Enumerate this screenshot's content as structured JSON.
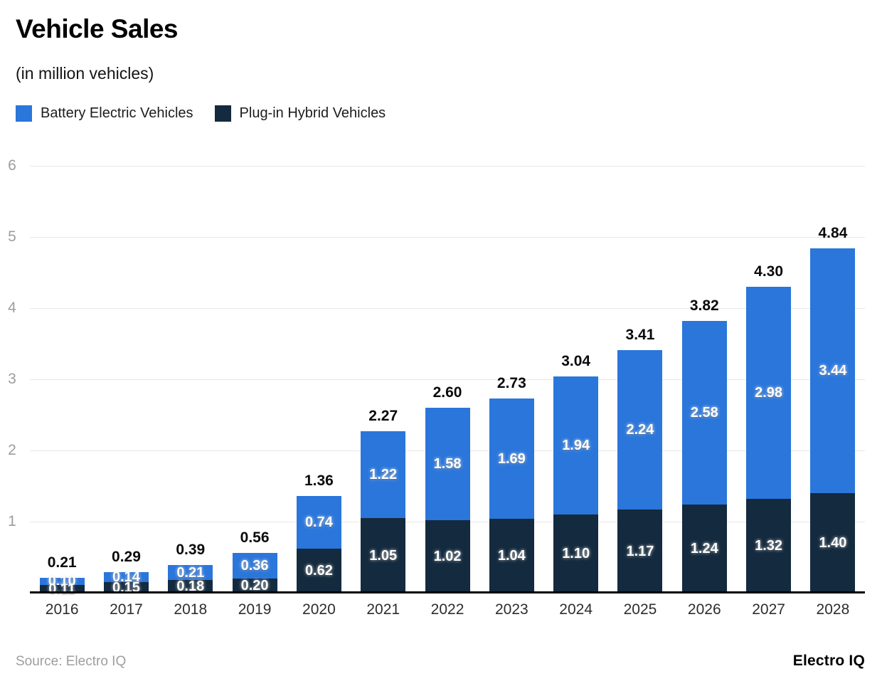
{
  "chart_data": {
    "type": "bar",
    "stacked": true,
    "title": "Vehicle Sales",
    "subtitle": "(in million vehicles)",
    "categories": [
      "2016",
      "2017",
      "2018",
      "2019",
      "2020",
      "2021",
      "2022",
      "2023",
      "2024",
      "2025",
      "2026",
      "2027",
      "2028"
    ],
    "series": [
      {
        "name": "Battery Electric Vehicles",
        "color": "#2a76db",
        "values": [
          0.1,
          0.14,
          0.21,
          0.36,
          0.74,
          1.22,
          1.58,
          1.69,
          1.94,
          2.24,
          2.58,
          2.98,
          3.44
        ],
        "labels": [
          "0.10",
          "0.14",
          "0.21",
          "0.36",
          "0.74",
          "1.22",
          "1.58",
          "1.69",
          "1.94",
          "2.24",
          "2.58",
          "2.98",
          "3.44"
        ]
      },
      {
        "name": "Plug-in Hybrid Vehicles",
        "color": "#142a3e",
        "values": [
          0.11,
          0.15,
          0.18,
          0.2,
          0.62,
          1.05,
          1.02,
          1.04,
          1.1,
          1.17,
          1.24,
          1.32,
          1.4
        ],
        "labels": [
          "0.11",
          "0.15",
          "0.18",
          "0.20",
          "0.62",
          "1.05",
          "1.02",
          "1.04",
          "1.10",
          "1.17",
          "1.24",
          "1.32",
          "1.40"
        ]
      }
    ],
    "totals": [
      "0.21",
      "0.29",
      "0.39",
      "0.56",
      "1.36",
      "2.27",
      "2.60",
      "2.73",
      "3.04",
      "3.41",
      "3.82",
      "4.30",
      "4.84"
    ],
    "ylim": [
      0,
      6
    ],
    "yticks": [
      1,
      2,
      3,
      4,
      5,
      6
    ],
    "grid": true,
    "legend_position": "top-left",
    "bar_value_text_color": "#ffffff",
    "total_label_color": "#0a0a0a",
    "gridline_color": "#e7e7e7",
    "axis_label_color": "#9d9d9d"
  },
  "footer": {
    "source": "Source: Electro IQ",
    "brand": "Electro IQ"
  }
}
